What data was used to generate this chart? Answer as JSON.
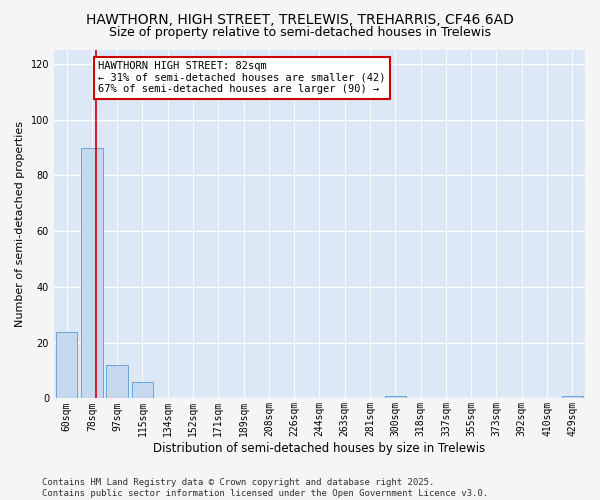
{
  "title1": "HAWTHORN, HIGH STREET, TRELEWIS, TREHARRIS, CF46 6AD",
  "title2": "Size of property relative to semi-detached houses in Trelewis",
  "xlabel": "Distribution of semi-detached houses by size in Trelewis",
  "ylabel": "Number of semi-detached properties",
  "bar_color": "#c5d8ed",
  "bar_edge_color": "#5b9bd5",
  "categories": [
    "60sqm",
    "78sqm",
    "97sqm",
    "115sqm",
    "134sqm",
    "152sqm",
    "171sqm",
    "189sqm",
    "208sqm",
    "226sqm",
    "244sqm",
    "263sqm",
    "281sqm",
    "300sqm",
    "318sqm",
    "337sqm",
    "355sqm",
    "373sqm",
    "392sqm",
    "410sqm",
    "429sqm"
  ],
  "values": [
    24,
    90,
    12,
    6,
    0,
    0,
    0,
    0,
    0,
    0,
    0,
    0,
    0,
    1,
    0,
    0,
    0,
    0,
    0,
    0,
    1
  ],
  "ylim": [
    0,
    125
  ],
  "yticks": [
    0,
    20,
    40,
    60,
    80,
    100,
    120
  ],
  "property_line_x": 1.15,
  "annotation_title": "HAWTHORN HIGH STREET: 82sqm",
  "annotation_line1": "← 31% of semi-detached houses are smaller (42)",
  "annotation_line2": "67% of semi-detached houses are larger (90) →",
  "annotation_box_color": "#cc0000",
  "footer1": "Contains HM Land Registry data © Crown copyright and database right 2025.",
  "footer2": "Contains public sector information licensed under the Open Government Licence v3.0.",
  "fig_background_color": "#f5f5f5",
  "plot_background_color": "#dce8f5",
  "grid_color": "#ffffff",
  "title1_fontsize": 10,
  "title2_fontsize": 9,
  "xlabel_fontsize": 8.5,
  "ylabel_fontsize": 8,
  "tick_fontsize": 7,
  "footer_fontsize": 6.5,
  "annotation_fontsize": 7.5
}
